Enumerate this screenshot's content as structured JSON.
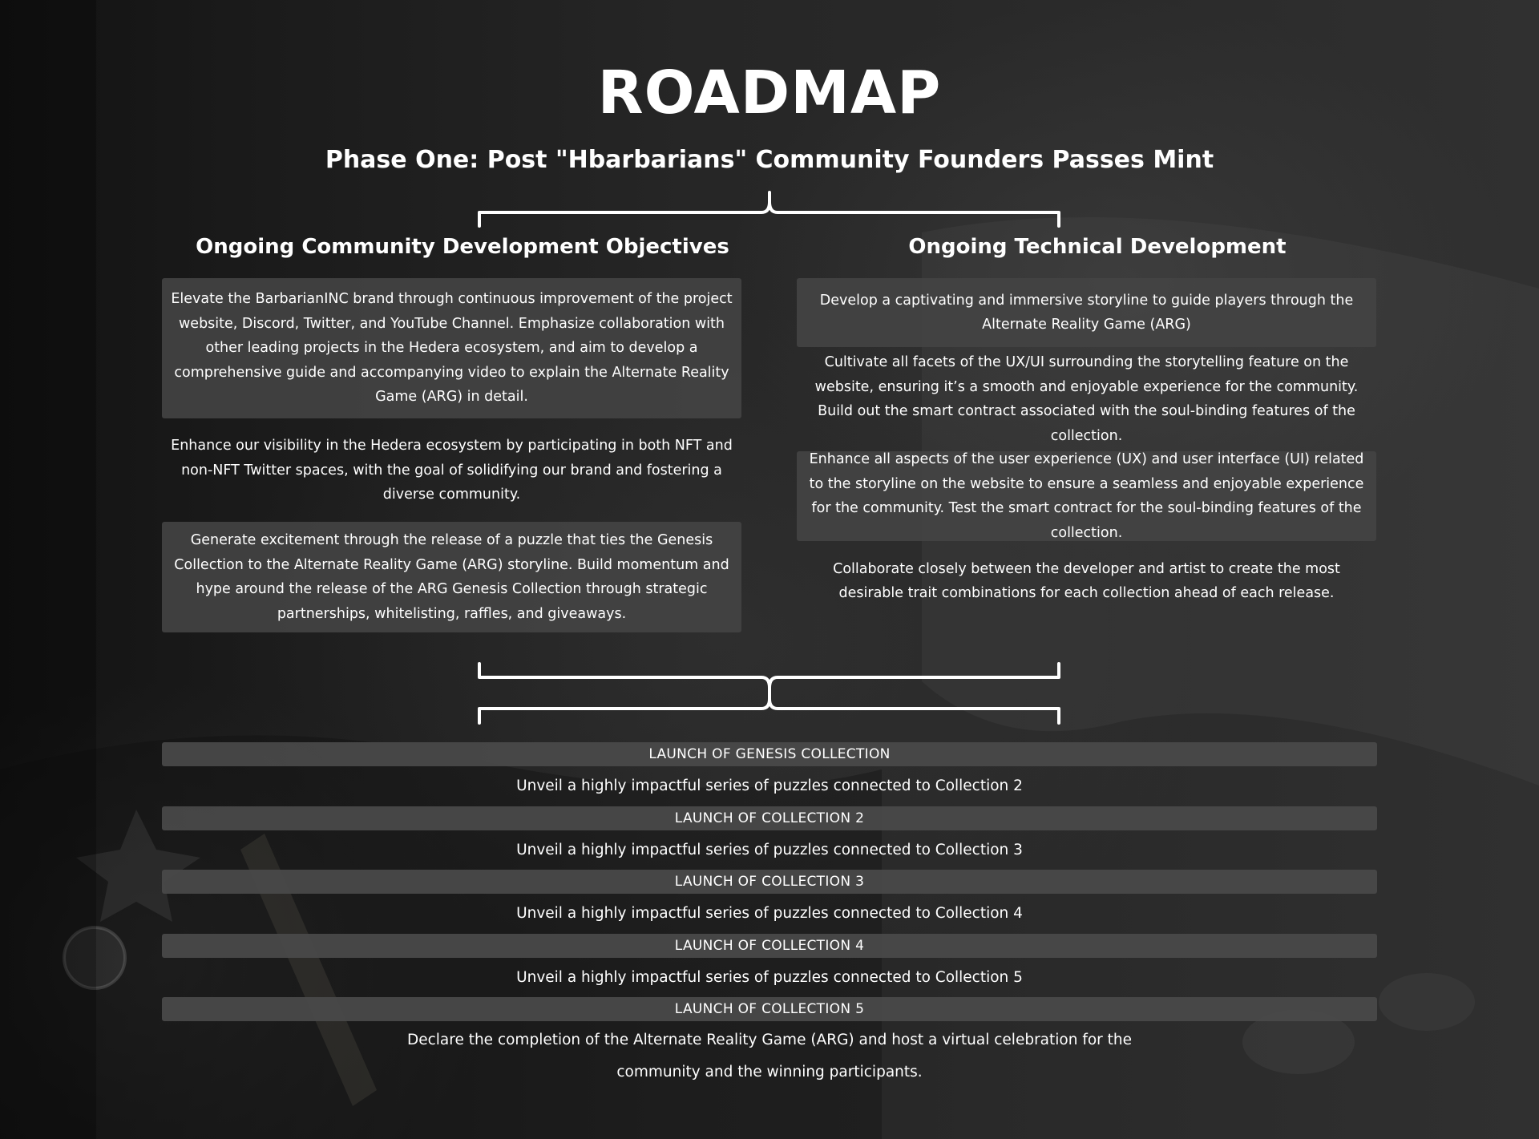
{
  "title": "ROADMAP",
  "phase_title": "Phase One: Post \"Hbarbarians\" Community Founders Passes Mint",
  "left_column": {
    "heading": "Ongoing Community Development Objectives",
    "items": [
      "Elevate the BarbarianINC brand through continuous improvement of the project website, Discord, Twitter, and YouTube Channel. Emphasize collaboration with other leading projects in the Hedera ecosystem, and aim to develop a comprehensive guide and accompanying video to explain the Alternate Reality Game (ARG) in detail.",
      "Enhance our visibility in the Hedera ecosystem by participating in both NFT and non-NFT Twitter spaces, with the goal of solidifying our brand and fostering a diverse community.",
      "Generate excitement through the release of a puzzle that ties the Genesis Collection to the Alternate Reality Game (ARG) storyline. Build momentum and hype around the release of the ARG Genesis Collection through strategic partnerships, whitelisting, raffles, and giveaways."
    ]
  },
  "right_column": {
    "heading": "Ongoing Technical Development",
    "items": [
      "Develop a captivating and immersive storyline to guide players through the Alternate Reality Game (ARG)",
      "Cultivate all facets of the UX/UI surrounding the storytelling feature on the website, ensuring it’s a smooth and enjoyable experience for the community. Build out the smart contract associated with the soul-binding features of the collection.",
      "Enhance all aspects of the user experience (UX) and user interface (UI) related to the storyline on the website to ensure a seamless and enjoyable experience for the community. Test the smart contract for the soul-binding features of the collection.",
      "Collaborate closely between the developer and artist to create the most desirable trait combinations for each collection ahead of each release."
    ]
  },
  "timeline": [
    {
      "launch": "LAUNCH OF GENESIS COLLECTION",
      "detail": "Unveil a highly impactful series of puzzles connected to Collection 2"
    },
    {
      "launch": "LAUNCH OF COLLECTION 2",
      "detail": "Unveil a highly impactful series of puzzles connected to Collection 3"
    },
    {
      "launch": "LAUNCH OF COLLECTION 3",
      "detail": "Unveil a highly impactful series of puzzles connected to Collection 4"
    },
    {
      "launch": "LAUNCH OF COLLECTION 4",
      "detail": "Unveil a highly impactful series of puzzles connected to Collection 5"
    },
    {
      "launch": "LAUNCH OF COLLECTION 5",
      "detail": "Declare the completion of the Alternate Reality Game (ARG) and host a virtual celebration for the community and the winning participants."
    }
  ],
  "colors": {
    "background": "#222222",
    "card": "#444444",
    "text": "#ffffff"
  }
}
